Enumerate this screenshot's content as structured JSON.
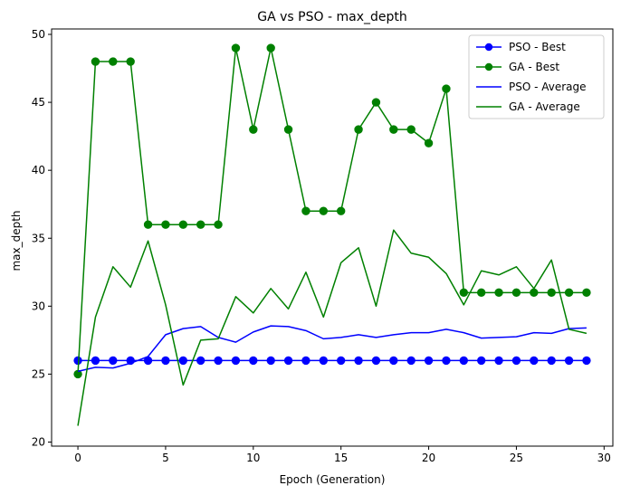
{
  "chart_data": {
    "type": "line",
    "title": "GA vs PSO - max_depth",
    "xlabel": "Epoch (Generation)",
    "ylabel": "max_depth",
    "xlim": [
      -1.5,
      30.5
    ],
    "ylim": [
      19.7,
      50.4
    ],
    "xticks": [
      0,
      5,
      10,
      15,
      20,
      25,
      30
    ],
    "yticks": [
      20,
      25,
      30,
      35,
      40,
      45,
      50
    ],
    "grid": false,
    "legend_position": "top-right",
    "x": [
      0,
      1,
      2,
      3,
      4,
      5,
      6,
      7,
      8,
      9,
      10,
      11,
      12,
      13,
      14,
      15,
      16,
      17,
      18,
      19,
      20,
      21,
      22,
      23,
      24,
      25,
      26,
      27,
      28,
      29
    ],
    "series": [
      {
        "name": "PSO - Best",
        "color": "#0000ff",
        "marker": "circle",
        "values": [
          26,
          26,
          26,
          26,
          26,
          26,
          26,
          26,
          26,
          26,
          26,
          26,
          26,
          26,
          26,
          26,
          26,
          26,
          26,
          26,
          26,
          26,
          26,
          26,
          26,
          26,
          26,
          26,
          26,
          26
        ]
      },
      {
        "name": "GA - Best",
        "color": "#008000",
        "marker": "circle",
        "values": [
          25,
          48,
          48,
          48,
          36,
          36,
          36,
          36,
          36,
          49,
          43,
          49,
          43,
          37,
          37,
          37,
          43,
          45,
          43,
          43,
          42,
          46,
          31,
          31,
          31,
          31,
          31,
          31,
          31,
          31
        ]
      },
      {
        "name": "PSO - Average",
        "color": "#0000ff",
        "marker": "none",
        "values": [
          25.2,
          25.5,
          25.45,
          25.8,
          26.3,
          27.9,
          28.35,
          28.5,
          27.7,
          27.35,
          28.1,
          28.55,
          28.5,
          28.2,
          27.6,
          27.7,
          27.9,
          27.7,
          27.9,
          28.05,
          28.05,
          28.3,
          28.05,
          27.65,
          27.7,
          27.75,
          28.05,
          28.0,
          28.35,
          28.4
        ]
      },
      {
        "name": "GA - Average",
        "color": "#008000",
        "marker": "none",
        "values": [
          21.2,
          29.2,
          32.9,
          31.4,
          34.8,
          30.1,
          24.2,
          27.5,
          27.6,
          30.7,
          29.5,
          31.3,
          29.8,
          32.5,
          29.2,
          33.2,
          34.3,
          30.0,
          35.6,
          33.9,
          33.6,
          32.4,
          30.1,
          32.6,
          32.3,
          32.9,
          31.3,
          33.4,
          28.3,
          28.0
        ]
      }
    ]
  }
}
